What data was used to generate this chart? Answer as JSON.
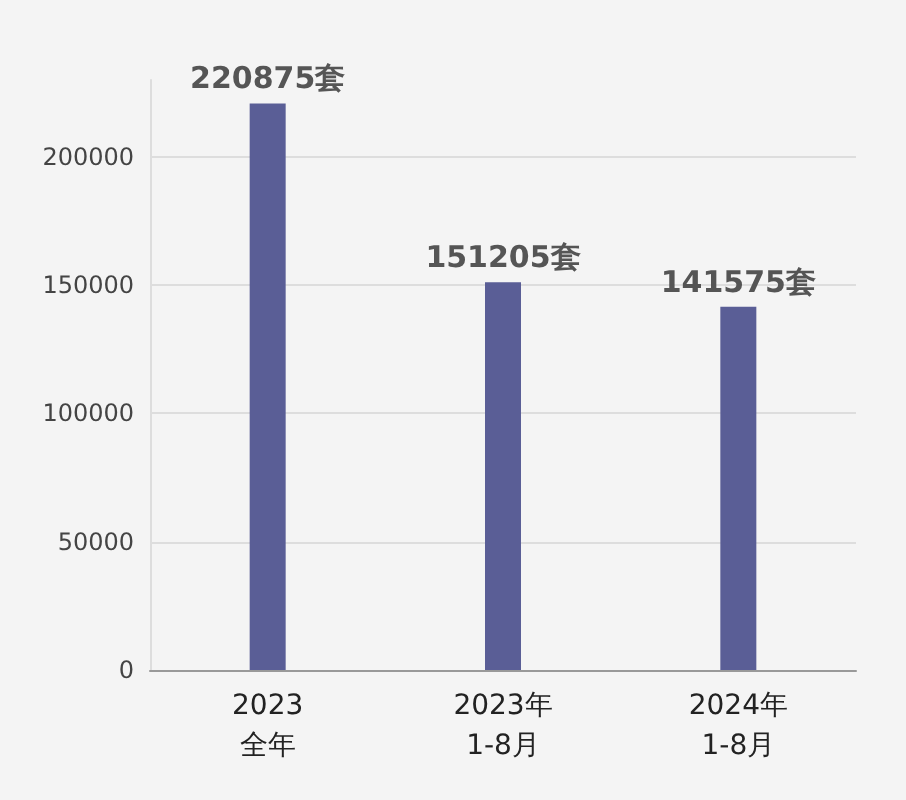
{
  "chart_data": {
    "type": "bar",
    "categories": [
      "2023\n全年",
      "2023年\n1-8月",
      "2024年\n1-8月"
    ],
    "values": [
      220875,
      151205,
      141575
    ],
    "value_labels": [
      "220875套",
      "151205套",
      "141575套"
    ],
    "color": "#5a5e96",
    "ylim": [
      0,
      230000
    ],
    "yticks": [
      0,
      50000,
      100000,
      150000,
      200000
    ],
    "grid": "y"
  }
}
